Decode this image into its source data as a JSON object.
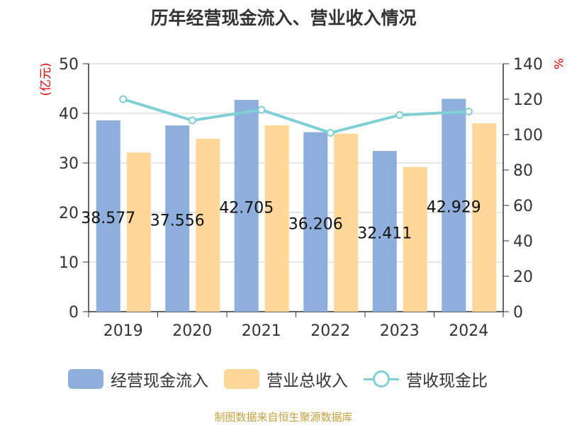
{
  "chart_data": {
    "type": "bar",
    "title": "历年经营现金流入、营业收入情况",
    "categories": [
      "2019",
      "2020",
      "2021",
      "2022",
      "2023",
      "2024"
    ],
    "series": [
      {
        "name": "经营现金流入",
        "type": "bar",
        "axis": "left",
        "color": "#8eaedb",
        "values": [
          38.577,
          37.556,
          42.705,
          36.206,
          32.411,
          42.929
        ],
        "data_labels": [
          "38.577",
          "37.556",
          "42.705",
          "36.206",
          "32.411",
          "42.929"
        ]
      },
      {
        "name": "营业总收入",
        "type": "bar",
        "axis": "left",
        "color": "#ffd899",
        "values": [
          32.1,
          34.9,
          37.6,
          35.9,
          29.2,
          38.0
        ]
      },
      {
        "name": "营收现金比",
        "type": "line",
        "axis": "right",
        "color": "#7fd0d4",
        "values": [
          120,
          108,
          114,
          101,
          111,
          113
        ]
      }
    ],
    "y_left": {
      "label": "(亿元)",
      "ylim": [
        0,
        50
      ],
      "ticks": [
        "0",
        "10",
        "20",
        "30",
        "40",
        "50"
      ]
    },
    "y_right": {
      "label": "%",
      "ylim": [
        0,
        140
      ],
      "ticks": [
        "0",
        "20",
        "40",
        "60",
        "80",
        "100",
        "120",
        "140"
      ]
    },
    "grid": true,
    "legend_position": "bottom"
  },
  "source_text": "制图数据来自恒生聚源数据库"
}
